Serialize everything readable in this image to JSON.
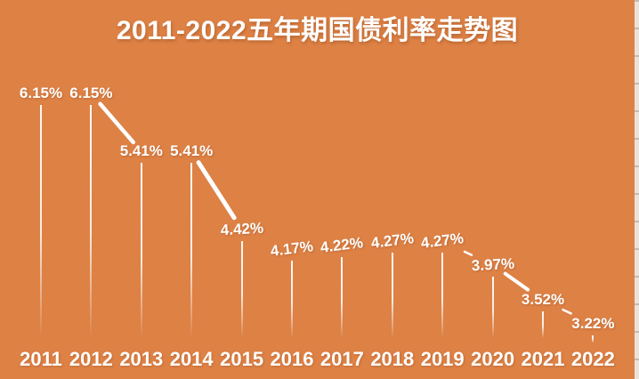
{
  "page": {
    "background_color": "#DD8145",
    "text_color": "#FFFFFF",
    "right_edge_color": "#EAE3DB"
  },
  "header": {
    "title": "2011-2022五年期国债利率走势图"
  },
  "chart_data": {
    "type": "line",
    "variant": "labeled-stem-drop-chart",
    "title": "2011-2022五年期国债利率走势图",
    "xlabel": "",
    "ylabel": "",
    "unit": "%",
    "ylim": [
      3.0,
      6.5
    ],
    "grid": false,
    "legend": "none",
    "axes_drawn": false,
    "categories": [
      "2011",
      "2012",
      "2013",
      "2014",
      "2015",
      "2016",
      "2017",
      "2018",
      "2019",
      "2020",
      "2021",
      "2022"
    ],
    "values": [
      6.15,
      6.15,
      5.41,
      5.41,
      4.42,
      4.17,
      4.22,
      4.27,
      4.27,
      3.97,
      3.52,
      3.22
    ],
    "labels": [
      "6.15%",
      "6.15%",
      "5.41%",
      "5.41%",
      "4.42%",
      "4.17%",
      "4.22%",
      "4.27%",
      "4.27%",
      "3.97%",
      "3.52%",
      "3.22%"
    ],
    "colors": {
      "label": "#FFFFFF",
      "stem": "#FFFFFF",
      "connector": "#FFFFFF"
    },
    "connectors": [
      {
        "from": "2012",
        "to": "2013",
        "t1": 0.18,
        "t2": 0.84,
        "width": 4.5
      },
      {
        "from": "2014",
        "to": "2015",
        "t1": 0.14,
        "t2": 0.85,
        "width": 5
      },
      {
        "from": "2019",
        "to": "2020",
        "t1": 0.44,
        "t2": 0.58,
        "width": 2.5
      },
      {
        "from": "2020",
        "to": "2021",
        "t1": 0.25,
        "t2": 0.7,
        "width": 4
      },
      {
        "from": "2021",
        "to": "2022",
        "t1": 0.4,
        "t2": 0.56,
        "width": 2.5
      }
    ]
  }
}
